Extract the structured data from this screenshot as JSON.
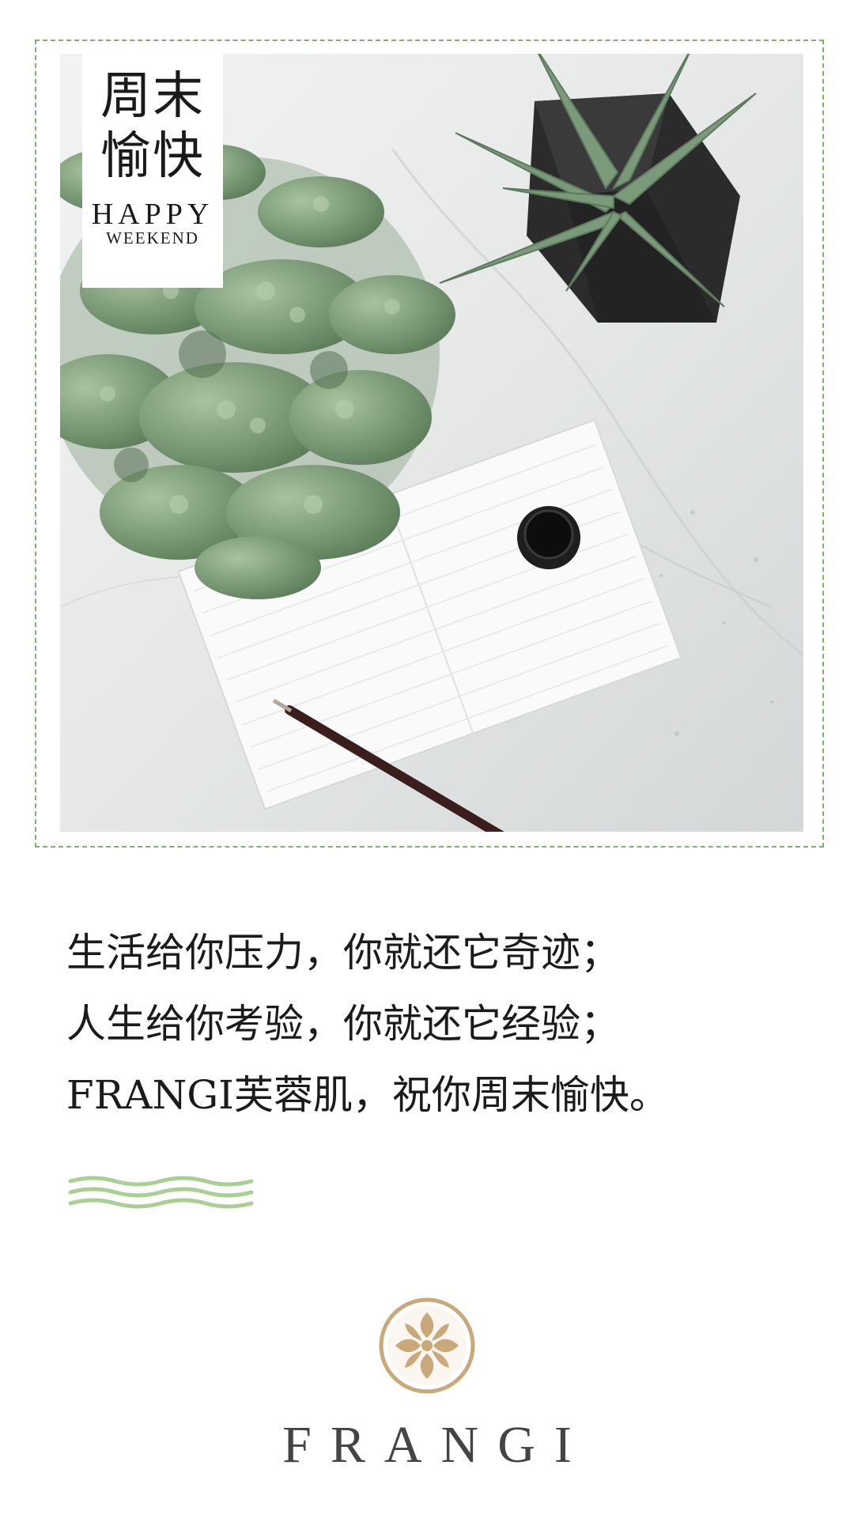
{
  "card": {
    "title_cn": "周末愉快",
    "title_en_line1": "HAPPY",
    "title_en_line2": "WEEKEND"
  },
  "quote": {
    "lines": [
      "生活给你压力，你就还它奇迹；",
      "人生给你考验，你就还它经验；",
      "FRANGI芙蓉肌，祝你周末愉快。"
    ]
  },
  "brand": {
    "name": "FRANGI"
  },
  "colors": {
    "frame_dash": "#7fb06e",
    "wave": "#a9cf93",
    "logo_gold": "#c9a87a",
    "succulent": "#7f9e7a",
    "pot": "#2b2b2b"
  }
}
